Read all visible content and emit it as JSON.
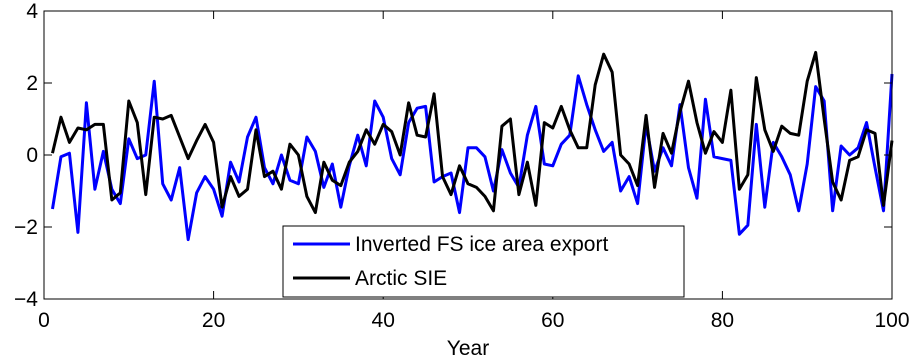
{
  "chart_data": {
    "type": "line",
    "xlabel": "Year",
    "ylabel": "",
    "xlim": [
      0,
      100
    ],
    "ylim": [
      -4,
      4
    ],
    "xticks": [
      0,
      20,
      40,
      60,
      80,
      100
    ],
    "yticks": [
      -4,
      -2,
      0,
      2,
      4
    ],
    "grid": false,
    "legend_position": "bottom-center",
    "x": [
      1,
      2,
      3,
      4,
      5,
      6,
      7,
      8,
      9,
      10,
      11,
      12,
      13,
      14,
      15,
      16,
      17,
      18,
      19,
      20,
      21,
      22,
      23,
      24,
      25,
      26,
      27,
      28,
      29,
      30,
      31,
      32,
      33,
      34,
      35,
      36,
      37,
      38,
      39,
      40,
      41,
      42,
      43,
      44,
      45,
      46,
      47,
      48,
      49,
      50,
      51,
      52,
      53,
      54,
      55,
      56,
      57,
      58,
      59,
      60,
      61,
      62,
      63,
      64,
      65,
      66,
      67,
      68,
      69,
      70,
      71,
      72,
      73,
      74,
      75,
      76,
      77,
      78,
      79,
      80,
      81,
      82,
      83,
      84,
      85,
      86,
      87,
      88,
      89,
      90,
      91,
      92,
      93,
      94,
      95,
      96,
      97,
      98,
      99,
      100
    ],
    "series": [
      {
        "name": "Inverted FS ice area export",
        "color": "#0000ff",
        "values": [
          -1.5,
          -0.05,
          0.05,
          -2.15,
          1.45,
          -0.95,
          0.1,
          -0.95,
          -1.35,
          0.45,
          -0.1,
          0.0,
          2.05,
          -0.8,
          -1.25,
          -0.35,
          -2.35,
          -1.05,
          -0.6,
          -0.95,
          -1.7,
          -0.2,
          -0.75,
          0.5,
          1.05,
          -0.35,
          -0.8,
          0.0,
          -0.7,
          -0.8,
          0.5,
          0.1,
          -0.9,
          -0.25,
          -1.45,
          -0.3,
          0.55,
          -0.3,
          1.5,
          1.05,
          -0.1,
          -0.55,
          0.9,
          1.3,
          1.35,
          -0.75,
          -0.6,
          -0.5,
          -1.6,
          0.2,
          0.2,
          -0.05,
          -1.0,
          0.15,
          -0.5,
          -0.9,
          0.55,
          1.35,
          -0.25,
          -0.3,
          0.3,
          0.55,
          2.2,
          1.4,
          0.7,
          0.1,
          0.35,
          -1.0,
          -0.6,
          -1.35,
          0.85,
          -0.45,
          0.2,
          -0.3,
          1.4,
          -0.35,
          -1.2,
          1.55,
          -0.05,
          -0.1,
          -0.15,
          -2.2,
          -1.95,
          0.85,
          -1.45,
          0.35,
          -0.05,
          -0.55,
          -1.55,
          -0.25,
          1.9,
          1.5,
          -1.55,
          0.25,
          0.0,
          0.2,
          0.9,
          -0.35,
          -1.55,
          2.25
        ]
      },
      {
        "name": "Arctic SIE",
        "color": "#000000",
        "values": [
          0.05,
          1.05,
          0.35,
          0.75,
          0.7,
          0.85,
          0.85,
          -1.25,
          -1.05,
          1.5,
          0.9,
          -1.1,
          1.05,
          1.0,
          1.1,
          0.5,
          -0.1,
          0.4,
          0.85,
          0.35,
          -1.45,
          -0.6,
          -1.15,
          -0.95,
          0.7,
          -0.6,
          -0.45,
          -0.95,
          0.3,
          0.0,
          -1.15,
          -1.6,
          -0.2,
          -0.7,
          -0.85,
          -0.2,
          0.1,
          0.7,
          0.3,
          0.85,
          0.65,
          0.0,
          1.45,
          0.55,
          0.5,
          1.7,
          -0.6,
          -1.1,
          -0.3,
          -0.8,
          -0.9,
          -1.15,
          -1.55,
          0.8,
          1.0,
          -1.1,
          -0.2,
          -1.4,
          0.9,
          0.75,
          1.35,
          0.7,
          0.2,
          0.2,
          1.95,
          2.8,
          2.3,
          0.0,
          -0.25,
          -0.85,
          1.1,
          -0.9,
          0.6,
          0.05,
          1.2,
          2.05,
          0.9,
          0.05,
          0.65,
          0.35,
          1.8,
          -0.95,
          -0.55,
          2.15,
          0.7,
          0.1,
          0.8,
          0.6,
          0.55,
          2.05,
          2.85,
          1.0,
          -0.75,
          -1.25,
          -0.15,
          -0.05,
          0.7,
          0.6,
          -1.4,
          0.4
        ]
      }
    ]
  }
}
